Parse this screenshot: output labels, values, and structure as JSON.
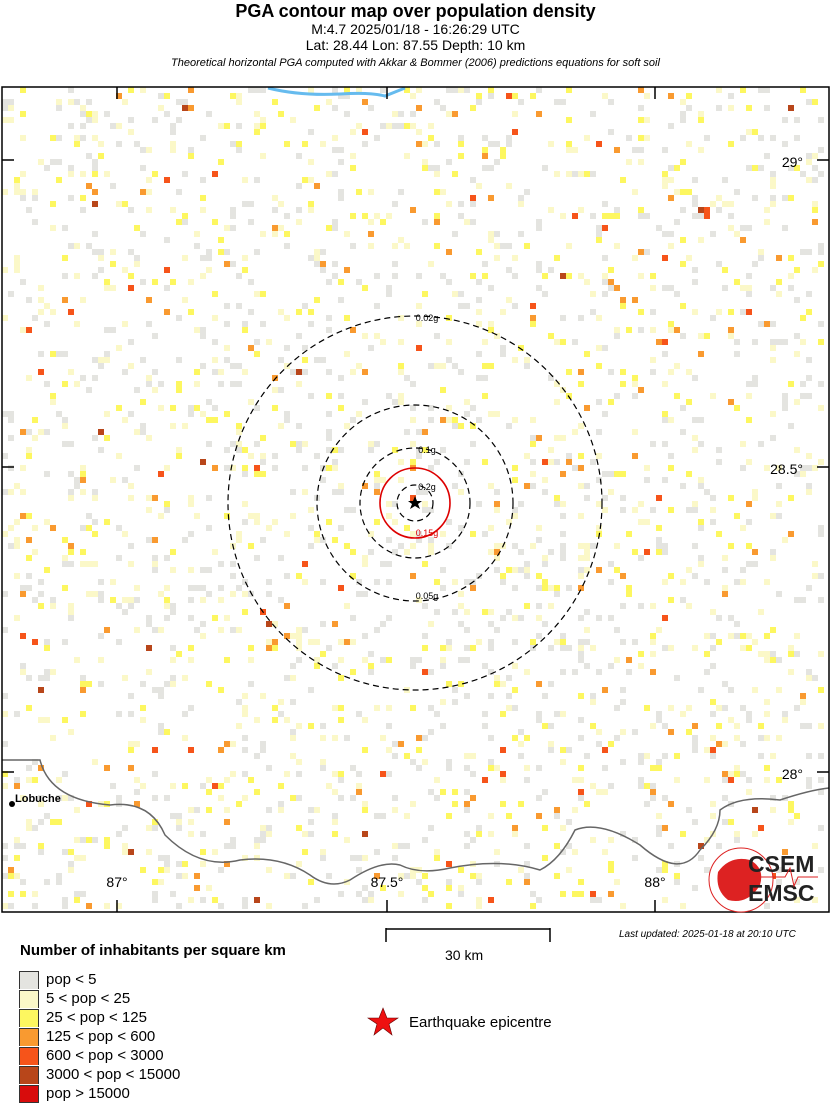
{
  "header": {
    "title": "PGA contour map over population density",
    "event_line": "M:4.7 2025/01/18 - 16:26:29 UTC",
    "location_line": "Lat: 28.44 Lon: 87.55 Depth: 10 km",
    "method_note": "Theoretical horizontal PGA computed with Akkar & Bommer (2006) predictions equations for soft soil"
  },
  "map": {
    "lon_ticks": [
      "87°",
      "87.5°",
      "88°"
    ],
    "lat_ticks": [
      "29°",
      "28.5°",
      "28°"
    ],
    "contours": [
      {
        "label": "0.02g",
        "color": "#000000",
        "style": "dashed"
      },
      {
        "label": "0.05g",
        "color": "#000000",
        "style": "dashed"
      },
      {
        "label": "0.1g",
        "color": "#000000",
        "style": "dashed"
      },
      {
        "label": "0.15g",
        "color": "#dd0000",
        "style": "solid"
      },
      {
        "label": "0.2g",
        "color": "#000000",
        "style": "dashed"
      }
    ],
    "places": [
      {
        "name": "Lobuche"
      }
    ],
    "logo": {
      "top": "CSEM",
      "bottom": "EMSC"
    }
  },
  "legend": {
    "title": "Number of inhabitants per square km",
    "items": [
      {
        "label": "pop < 5",
        "color": "#e4e4e0"
      },
      {
        "label": "5 < pop < 25",
        "color": "#fbf8c8"
      },
      {
        "label": "25 < pop < 125",
        "color": "#fdf760"
      },
      {
        "label": "125 < pop < 600",
        "color": "#f99a30"
      },
      {
        "label": "600 < pop < 3000",
        "color": "#f6541a"
      },
      {
        "label": "3000 < pop < 15000",
        "color": "#b8461a"
      },
      {
        "label": "pop > 15000",
        "color": "#d80c0c"
      }
    ]
  },
  "scale": {
    "label": "30 km"
  },
  "epicentre": {
    "label": "Earthquake epicentre",
    "color": "#ee1111"
  },
  "last_updated": "Last updated: 2025-01-18 at 20:10 UTC"
}
